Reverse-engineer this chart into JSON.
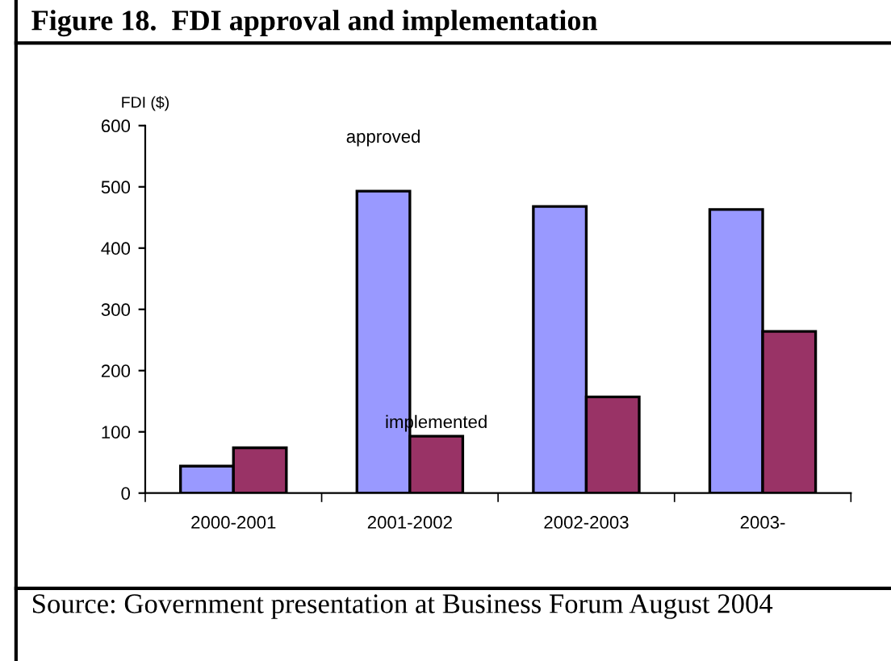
{
  "chart_data": {
    "type": "bar",
    "title": "Figure 18.  FDI approval and implementation",
    "ylabel": "FDI ($)",
    "categories": [
      "2000-2001",
      "2001-2002",
      "2002-2003",
      "2003-"
    ],
    "series": [
      {
        "name": "approved",
        "color": "#9999ff",
        "values": [
          44,
          493,
          468,
          463
        ]
      },
      {
        "name": "implemented",
        "color": "#993366",
        "values": [
          74,
          93,
          157,
          264
        ]
      }
    ],
    "ylim": [
      0,
      600
    ],
    "yticks": [
      0,
      100,
      200,
      300,
      400,
      500,
      600
    ],
    "grid": false,
    "legend": false,
    "annotations": [
      "Source: Government presentation at Business Forum August 2004"
    ]
  }
}
